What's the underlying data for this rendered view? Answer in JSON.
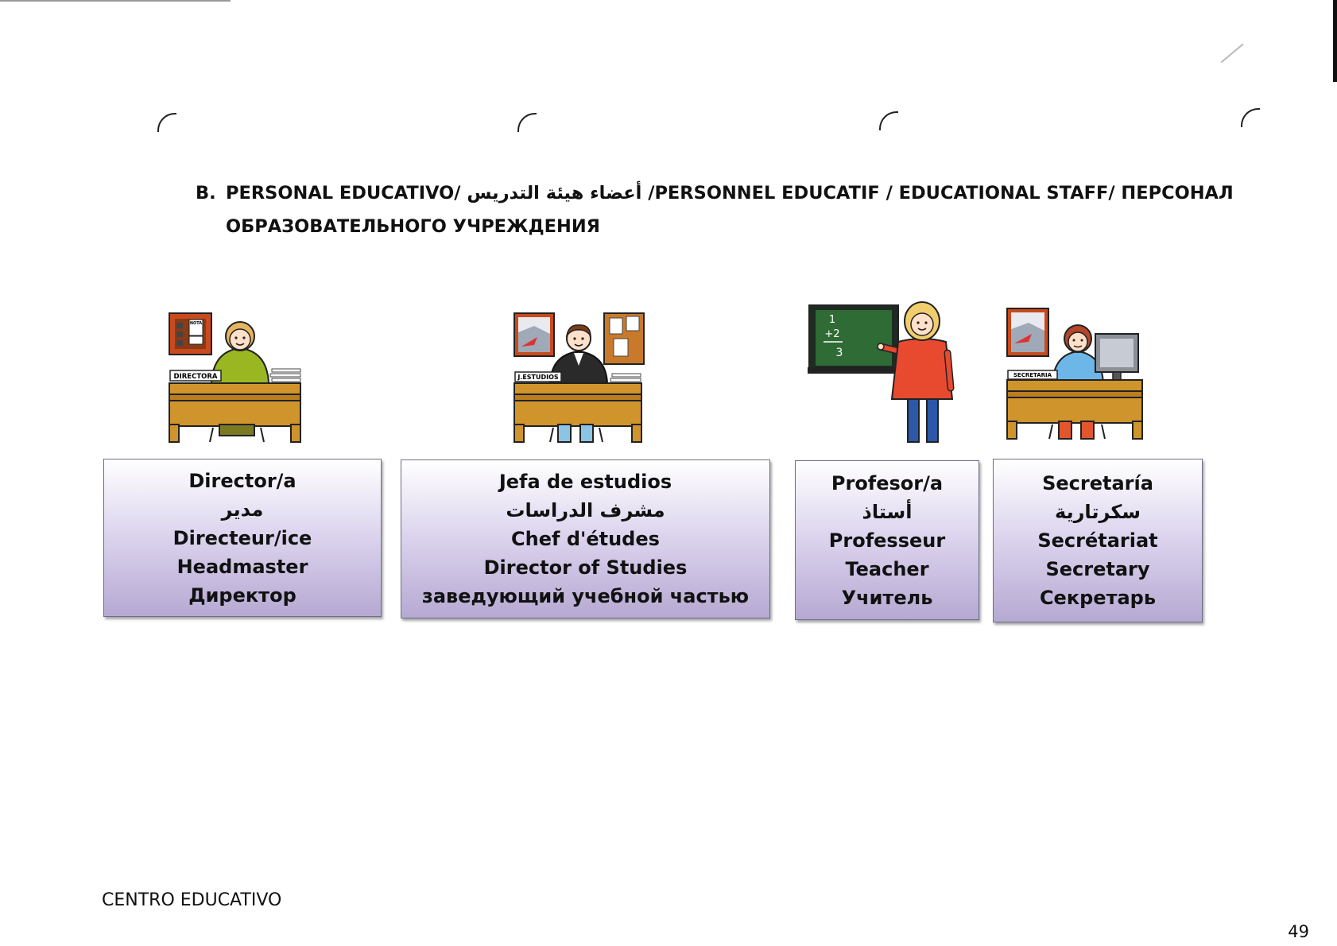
{
  "heading": {
    "letter": "B.",
    "line1_part1": "PERSONAL EDUCATIVO/ ",
    "arabic": "أعضاء هيئة التدريس",
    "line1_part2": " /PERSONNEL EDUCATIF / EDUCATIONAL STAFF/ ПЕРСОНАЛ",
    "line2": "ОБРАЗОВАТЕЛЬНОГО УЧРЕЖДЕНИЯ"
  },
  "cards": [
    {
      "desk_sign": "DIRECTORA",
      "lines": [
        "Director/a",
        "مدير",
        "Directeur/ice",
        "Headmaster",
        "Директор"
      ]
    },
    {
      "desk_sign": "J.ESTUDIOS",
      "lines": [
        "Jefa de estudios",
        "مشرف الدراسات",
        "Chef d'études",
        "Director of Studies",
        "заведующий учебной частью"
      ]
    },
    {
      "board": [
        "1",
        "+2",
        "3"
      ],
      "lines": [
        "Profesor/a",
        "أستاذ",
        "Professeur",
        "Teacher",
        "Учитель"
      ]
    },
    {
      "desk_sign": "SECRETARIA",
      "lines": [
        "Secretaría",
        "سكرتارية",
        "Secrétariat",
        "Secretary",
        "Секретарь"
      ]
    }
  ],
  "note_label": "NOTA",
  "footer": {
    "label": "CENTRO EDUCATIVO",
    "page_number": "49"
  }
}
